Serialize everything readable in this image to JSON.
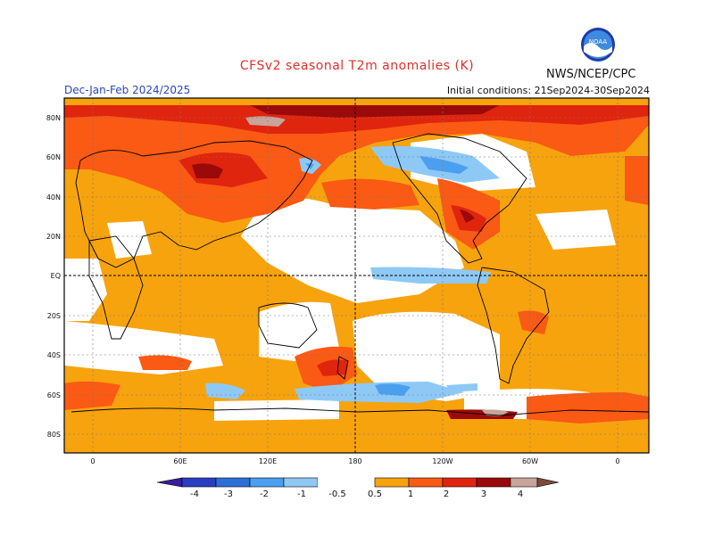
{
  "header": {
    "title": "CFSv2 seasonal T2m anomalies (K)",
    "org": "NWS/NCEP/CPC",
    "season": "Dec-Jan-Feb 2024/2025",
    "initial_conditions": "Initial conditions: 21Sep2024-30Sep2024",
    "logo_text": "NOAA"
  },
  "axes": {
    "lat_labels": [
      "80N",
      "60N",
      "40N",
      "20N",
      "EQ",
      "20S",
      "40S",
      "60S",
      "80S"
    ],
    "lon_labels": [
      "0",
      "60E",
      "120E",
      "180",
      "120W",
      "60W",
      "0"
    ]
  },
  "legend": {
    "labels": [
      "-4",
      "-3",
      "-2",
      "-1",
      "-0.5",
      "0.5",
      "1",
      "2",
      "3",
      "4"
    ],
    "colors": {
      "below_-4": "#3a1c9e",
      "-4_-3": "#2a3ec1",
      "-3_-2": "#2d6fd6",
      "-2_-1": "#4aa0ee",
      "-1_-0.5": "#8ec9f6",
      "-0.5_0.5": "#ffffff",
      "0.5_1": "#f7a30e",
      "1_2": "#fa5a14",
      "2_3": "#e0250e",
      "3_4": "#9b0a0a",
      "4_plus": "#c8a49a",
      "above": "#7a4a3a"
    }
  },
  "colors": {
    "title": "#e0302a",
    "subtitle": "#2b45b8"
  }
}
